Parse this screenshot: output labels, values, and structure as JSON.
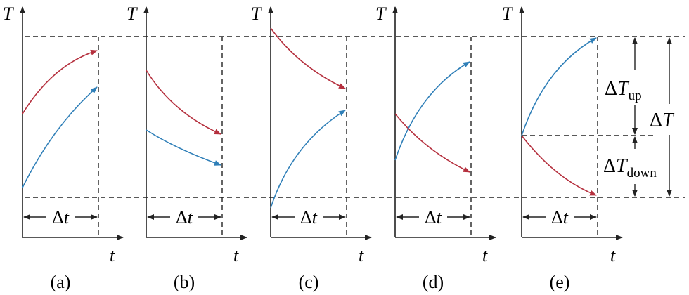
{
  "axis_symbols": {
    "vertical": "T",
    "horizontal": "t"
  },
  "panels": [
    {
      "label": "(a)",
      "interval": "Δt"
    },
    {
      "label": "(b)",
      "interval": "Δt"
    },
    {
      "label": "(c)",
      "interval": "Δt"
    },
    {
      "label": "(d)",
      "interval": "Δt"
    },
    {
      "label": "(e)",
      "interval": "Δt"
    }
  ],
  "annotations": {
    "delta_t_up": {
      "symbol": "ΔT",
      "subscript": "up"
    },
    "delta_t_down": {
      "symbol": "ΔT",
      "subscript": "down"
    },
    "delta_t_total": {
      "symbol": "ΔT"
    }
  },
  "colors": {
    "hot_curve": "#b5303e",
    "cold_curve": "#2f7fb8",
    "axes": "#222222"
  }
}
